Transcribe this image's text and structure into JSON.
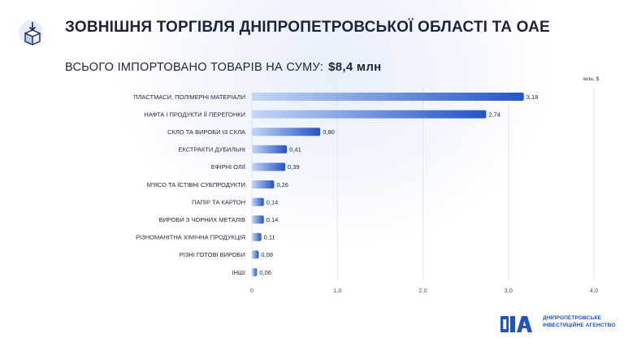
{
  "header": {
    "title": "ЗОВНІШНЯ ТОРГІВЛЯ ДНІПРОПЕТРОВСЬКОЇ ОБЛАСТІ ТА ОАЕ",
    "subtitle_prefix": "ВСЬОГО ІМПОРТОВАНО ТОВАРІВ НА СУМУ:",
    "subtitle_total": "$8,4 млн",
    "icon": "import-box-icon"
  },
  "chart_data": {
    "type": "bar",
    "orientation": "horizontal",
    "unit_label": "млн, $",
    "categories": [
      "ПЛАСТМАСИ, ПОЛІМЕРНІ МАТЕРІАЛИ",
      "НАФТА І ПРОДУКТИ ЇЇ ПЕРЕГОНКИ",
      "СКЛО ТА ВИРОБИ ІЗ СКЛА",
      "ЕКСТРАКТИ ДУБИЛЬНІ",
      "ЕФІРНІ ОЛІЇ",
      "М'ЯСО ТА ЇСТІВНІ СУБПРОДУКТИ",
      "ПАПІР ТА КАРТОН",
      "ВИРОБИ З ЧОРНИХ МЕТАЛІВ",
      "РІЗНОМАНІТНА ХІМІЧНА ПРОДУКЦІЯ",
      "РІЗНІ ГОТОВІ ВИРОБИ",
      "ІНШІ"
    ],
    "values": [
      3.18,
      2.74,
      0.8,
      0.41,
      0.39,
      0.26,
      0.14,
      0.14,
      0.11,
      0.08,
      0.06
    ],
    "value_labels": [
      "3,18",
      "2,74",
      "0,80",
      "0,41",
      "0,39",
      "0,26",
      "0,14",
      "0,14",
      "0,11",
      "0,08",
      "0,06"
    ],
    "xlim": [
      0,
      4
    ],
    "xticks": [
      0,
      1,
      2,
      3,
      4
    ],
    "xtick_labels": [
      "0",
      "1,0",
      "2,0",
      "3,0",
      "4,0"
    ],
    "grid": true,
    "colors": {
      "bar_start": "#c3d7f7",
      "bar_end": "#2454c8",
      "grid": "#e3e6ec"
    }
  },
  "logo": {
    "mark": "DIA",
    "line1": "ДНІПРОПЕТРОВСЬКЕ",
    "line2": "ІНВЕСТИЦІЙНЕ АГЕНСТВО",
    "color": "#1f54c6"
  }
}
